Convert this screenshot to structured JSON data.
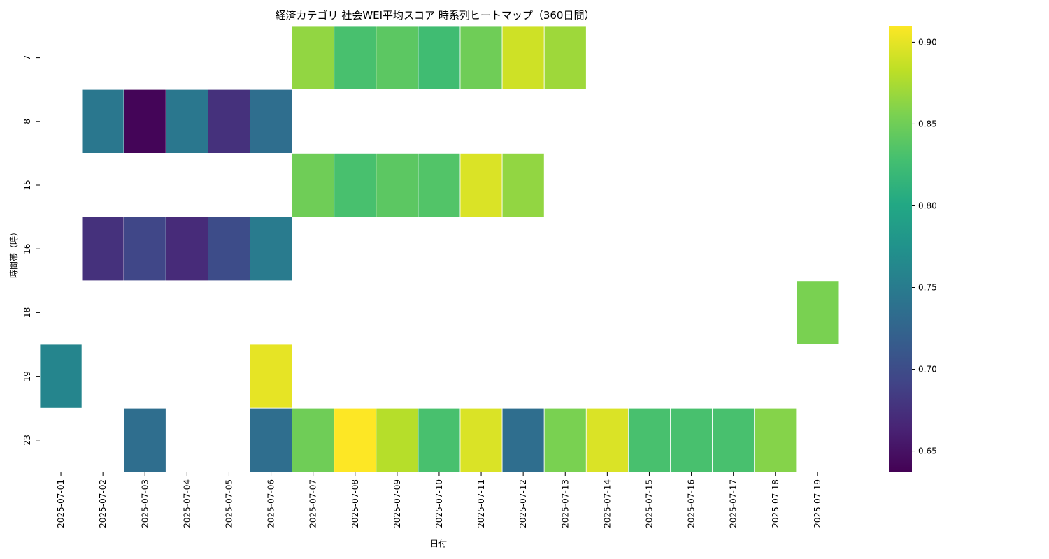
{
  "chart_data": {
    "type": "heatmap",
    "title": "経済カテゴリ 社会WEI平均スコア 時系列ヒートマップ（360日間）",
    "xlabel": "日付",
    "ylabel": "時間帯（時）",
    "x_categories": [
      "2025-07-01",
      "2025-07-02",
      "2025-07-03",
      "2025-07-04",
      "2025-07-05",
      "2025-07-06",
      "2025-07-07",
      "2025-07-08",
      "2025-07-09",
      "2025-07-10",
      "2025-07-11",
      "2025-07-12",
      "2025-07-13",
      "2025-07-14",
      "2025-07-15",
      "2025-07-16",
      "2025-07-17",
      "2025-07-18",
      "2025-07-19"
    ],
    "y_categories": [
      "7",
      "8",
      "15",
      "16",
      "18",
      "19",
      "23"
    ],
    "values": [
      [
        null,
        null,
        null,
        null,
        null,
        null,
        0.865,
        0.83,
        0.84,
        0.825,
        0.85,
        0.89,
        0.87,
        null,
        null,
        null,
        null,
        null,
        null
      ],
      [
        null,
        0.745,
        0.64,
        0.745,
        0.675,
        0.735,
        null,
        null,
        null,
        null,
        null,
        null,
        null,
        null,
        null,
        null,
        null,
        null,
        null
      ],
      [
        null,
        null,
        null,
        null,
        null,
        null,
        0.85,
        0.83,
        0.84,
        0.835,
        0.895,
        0.865,
        null,
        null,
        null,
        null,
        null,
        null,
        null
      ],
      [
        null,
        0.675,
        0.695,
        0.67,
        0.7,
        0.75,
        null,
        null,
        null,
        null,
        null,
        null,
        null,
        null,
        null,
        null,
        null,
        null,
        null
      ],
      [
        null,
        null,
        null,
        null,
        null,
        null,
        null,
        null,
        null,
        null,
        null,
        null,
        null,
        null,
        null,
        null,
        null,
        null,
        0.855
      ],
      [
        0.76,
        null,
        null,
        null,
        null,
        0.9,
        null,
        null,
        null,
        null,
        null,
        null,
        null,
        null,
        null,
        null,
        null,
        null,
        null
      ],
      [
        null,
        null,
        0.735,
        null,
        null,
        0.735,
        0.85,
        0.91,
        0.88,
        0.83,
        0.895,
        0.735,
        0.855,
        0.895,
        0.83,
        0.83,
        0.83,
        0.86,
        null
      ]
    ],
    "colorbar": {
      "colormap": "viridis",
      "vmin": 0.637,
      "vmax": 0.91,
      "ticks": [
        "0.65",
        "0.70",
        "0.75",
        "0.80",
        "0.85",
        "0.90"
      ]
    },
    "grid": false
  }
}
